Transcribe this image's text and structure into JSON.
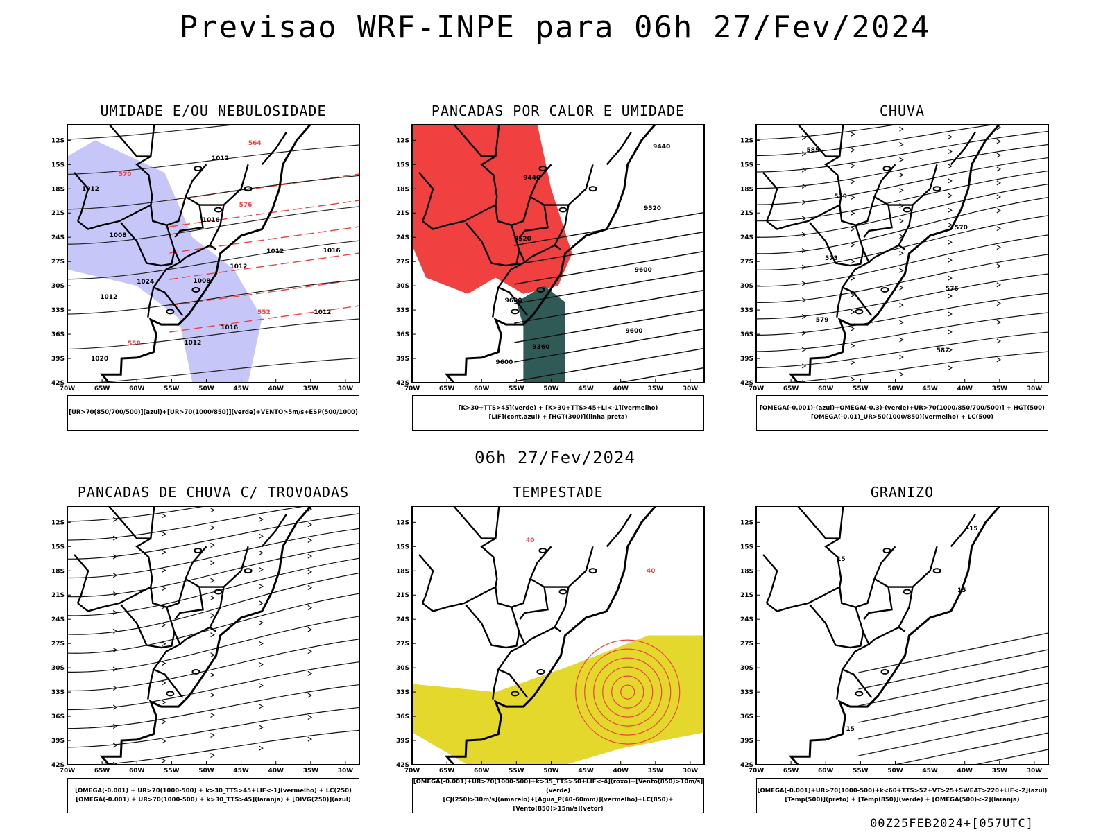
{
  "title": "Previsao WRF-INPE  para 06h 27/Fev/2024",
  "mid_time": "06h 27/Fev/2024",
  "footer": "00Z25FEB2024+[057UTC]",
  "lat_ticks": [
    "12S",
    "15S",
    "18S",
    "21S",
    "24S",
    "27S",
    "30S",
    "33S",
    "36S",
    "39S",
    "42S"
  ],
  "lon_ticks": [
    "70W",
    "65W",
    "60W",
    "55W",
    "50W",
    "45W",
    "40W",
    "35W",
    "30W"
  ],
  "colors": {
    "blue": "#3a4cf0",
    "green": "#22cc22",
    "red": "#f04040",
    "yellow": "#e4d82c",
    "orange": "#f08a30",
    "dark": "#2f5a55",
    "purple": "#8a2be2",
    "lavender": "#b8b8f8"
  },
  "panels": [
    {
      "title": "UMIDADE E/OU NEBULOSIDADE",
      "legend": [
        "[UR>70(850/700/500)](azul)+[UR>70(1000/850)](verde)+VENTO>5m/s+ESP(500/1000)"
      ],
      "labels": [
        "1012",
        "1012",
        "1008",
        "1016",
        "1016",
        "1012",
        "1012",
        "1020",
        "1016",
        "1012",
        "1012",
        "1008",
        "576",
        "570",
        "564",
        "558",
        "552",
        "1024",
        "1012"
      ]
    },
    {
      "title": "PANCADAS POR CALOR E UMIDADE",
      "legend": [
        "[K>30+TTS>45](verde) + [K>30+TTS>45+LI<-1](vermelho)",
        "[LIF](cont.azul) + [HGT(300)](linha preta)"
      ],
      "labels": [
        "9600",
        "9600",
        "9600",
        "9600",
        "9520",
        "9520",
        "9440",
        "9440",
        "9360"
      ]
    },
    {
      "title": "CHUVA",
      "legend": [
        "[OMEGA(-0.001)-(azul)+OMEGA(-0.3)-(verde)+UR>70(1000/850/700/500)] + HGT(500)",
        "[OMEGA(-0.01)_UR>50(1000/850)(vermelho) + LC(500)"
      ],
      "labels": [
        "585",
        "582",
        "579",
        "576",
        "573",
        "570",
        "579"
      ]
    },
    {
      "title": "PANCADAS DE CHUVA C/ TROVOADAS",
      "legend": [
        "[OMEGA(-0.001) + UR>70(1000-500) + k>30_TTS>45+LIF<-1](vermelho) + LC(250)",
        "[OMEGA(-0.001) + UR>70(1000-500) + k>30_TTS>45](laranja) + [DIVG(250)](azul)"
      ],
      "labels": []
    },
    {
      "title": "TEMPESTADE",
      "legend": [
        "[OMEGA(-0.001)+UR>70(1000-500)+k>35_TTS>50+LIF<-4](roxo)+[Vento(850)>10m/s](verde)",
        "[CJ(250)>30m/s](amarelo)+[Agua_P(40-60mm)](vermelho)+LC(850)+[Vento(850)>15m/s](vetor)"
      ],
      "labels": [
        "40",
        "40"
      ]
    },
    {
      "title": "GRANIZO",
      "legend": [
        "[OMEGA(-0.001)+UR>70(1000-500)+k<60+TTS>52+VT>25+SWEAT>220+LIF<-2](azul)",
        "[Temp(500)](preto) + [Temp(850)](verde) + [OMEGA(500)<-2](laranja)"
      ],
      "labels": [
        "15",
        "15",
        "-15",
        "15"
      ]
    }
  ]
}
